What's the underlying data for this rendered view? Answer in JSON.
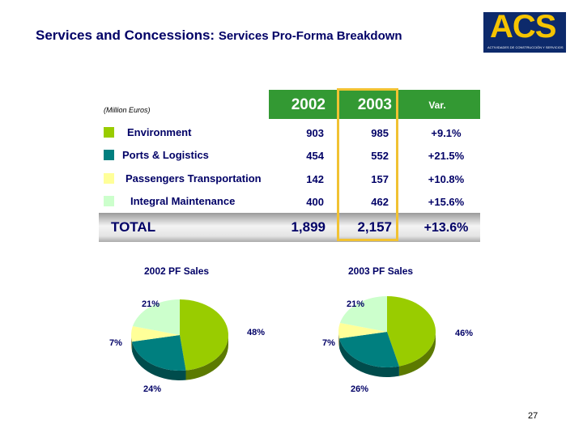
{
  "title": {
    "main": "Services and Concessions:",
    "sub": "Services Pro-Forma Breakdown"
  },
  "logo": {
    "text": "ACS",
    "tagline": "ACTIVIDADES DE CONSTRUCCIÓN Y SERVICIOS"
  },
  "table": {
    "unit": "(Million Euros)",
    "headers": [
      "2002",
      "2003",
      "Var."
    ],
    "rows": [
      {
        "label": "Environment",
        "color": "#99cc00",
        "v2002": "903",
        "v2003": "985",
        "var": "+9.1%"
      },
      {
        "label": "Ports & Logistics",
        "color": "#007f7f",
        "v2002": "454",
        "v2003": "552",
        "var": "+21.5%"
      },
      {
        "label": "Passengers Transportation",
        "color": "#ffff99",
        "v2002": "142",
        "v2003": "157",
        "var": "+10.8%"
      },
      {
        "label": "Integral Maintenance",
        "color": "#ccffcc",
        "v2002": "400",
        "v2003": "462",
        "var": "+15.6%"
      }
    ],
    "total": {
      "label": "TOTAL",
      "v2002": "1,899",
      "v2003": "2,157",
      "var": "+13.6%"
    }
  },
  "chart_data": [
    {
      "type": "pie",
      "title": "2002 PF Sales",
      "categories": [
        "Environment",
        "Ports & Logistics",
        "Passengers Transportation",
        "Integral Maintenance"
      ],
      "values": [
        48,
        24,
        7,
        21
      ],
      "labels": [
        "48%",
        "24%",
        "7%",
        "21%"
      ],
      "colors": [
        "#99cc00",
        "#007f7f",
        "#ffff99",
        "#ccffcc"
      ]
    },
    {
      "type": "pie",
      "title": "2003 PF Sales",
      "categories": [
        "Environment",
        "Ports & Logistics",
        "Passengers Transportation",
        "Integral Maintenance"
      ],
      "values": [
        46,
        26,
        7,
        21
      ],
      "labels": [
        "46%",
        "26%",
        "7%",
        "21%"
      ],
      "colors": [
        "#99cc00",
        "#007f7f",
        "#ffff99",
        "#ccffcc"
      ]
    }
  ],
  "page_number": "27"
}
